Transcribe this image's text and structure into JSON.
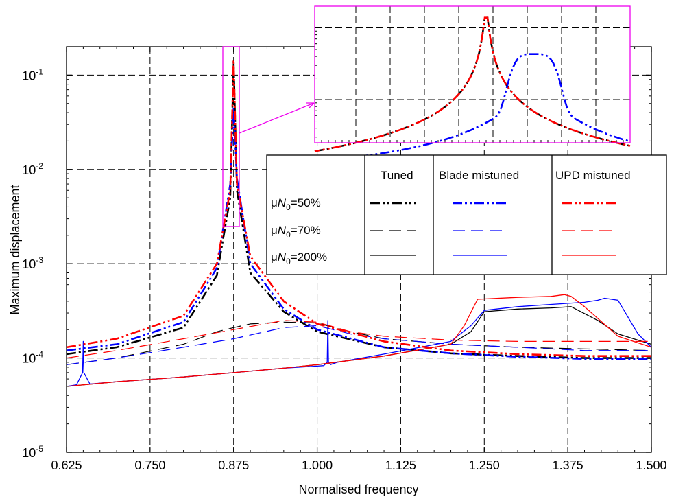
{
  "chart_data": {
    "type": "line",
    "xlabel": "Normalised frequency",
    "ylabel": "Maximum displacement",
    "xlim": [
      0.625,
      1.5
    ],
    "ylim": [
      1e-05,
      0.2
    ],
    "yscale": "log",
    "grid": true,
    "x_ticks": [
      "0.625",
      "0.750",
      "0.875",
      "1.000",
      "1.125",
      "1.250",
      "1.375",
      "1.500"
    ],
    "y_ticks": [
      {
        "base": "10",
        "exp": "-5",
        "value": 1e-05
      },
      {
        "base": "10",
        "exp": "-4",
        "value": 0.0001
      },
      {
        "base": "10",
        "exp": "-3",
        "value": 0.001
      },
      {
        "base": "10",
        "exp": "-2",
        "value": 0.01
      },
      {
        "base": "10",
        "exp": "-1",
        "value": 0.1
      }
    ],
    "legend": {
      "placement": "center-right",
      "columns": [
        "Tuned",
        "Blade mistuned",
        "UPD mistuned"
      ],
      "rows": [
        {
          "mu": "μ",
          "n": "N",
          "sub": "0",
          "value": "=50%"
        },
        {
          "mu": "μ",
          "n": "N",
          "sub": "0",
          "value": "=70%"
        },
        {
          "mu": "μ",
          "n": "N",
          "sub": "0",
          "value": "=200%"
        }
      ]
    },
    "inset": {
      "placement": "top-right",
      "xlim": [
        0.862,
        0.885
      ],
      "ylim": [
        0.0025,
        0.2
      ]
    },
    "colors": {
      "tuned": "#000000",
      "blade": "#0000ff",
      "upd": "#ff0000",
      "inset_frame": "#ee00ee"
    },
    "series": [
      {
        "group": "tuned",
        "row": 0,
        "x": [
          0.625,
          0.7,
          0.8,
          0.85,
          0.87,
          0.875,
          0.88,
          0.9,
          0.95,
          1.0,
          1.1,
          1.2,
          1.3,
          1.4,
          1.5
        ],
        "y": [
          0.00011,
          0.00013,
          0.00021,
          0.00075,
          0.005,
          0.14,
          0.006,
          0.0008,
          0.00031,
          0.00019,
          0.00013,
          0.000112,
          0.000105,
          0.0001,
          0.0001
        ]
      },
      {
        "group": "tuned",
        "row": 1,
        "x": [
          0.625,
          0.7,
          0.8,
          0.85,
          0.875,
          0.9,
          0.95,
          1.0,
          1.05,
          1.1,
          1.2,
          1.3,
          1.4,
          1.5
        ],
        "y": [
          8.5e-05,
          0.0001,
          0.00014,
          0.00019,
          0.00021,
          0.00023,
          0.00024,
          0.000235,
          0.00019,
          0.00016,
          0.00014,
          0.00013,
          0.000125,
          0.00012
        ]
      },
      {
        "group": "tuned",
        "row": 2,
        "x": [
          0.625,
          0.7,
          0.8,
          0.875,
          0.95,
          1.0,
          1.1,
          1.2,
          1.23,
          1.25,
          1.3,
          1.35,
          1.38,
          1.42,
          1.45,
          1.5
        ],
        "y": [
          5e-05,
          5.6e-05,
          6.3e-05,
          7e-05,
          7.8e-05,
          8.5e-05,
          0.000105,
          0.00014,
          0.00019,
          0.00031,
          0.00033,
          0.00034,
          0.00035,
          0.00025,
          0.00018,
          0.00014
        ]
      },
      {
        "group": "blade",
        "row": 0,
        "x": [
          0.625,
          0.7,
          0.8,
          0.85,
          0.87,
          0.875,
          0.88,
          0.9,
          0.95,
          1.0,
          1.1,
          1.2,
          1.3,
          1.4,
          1.5
        ],
        "y": [
          0.00012,
          0.00014,
          0.00024,
          0.0009,
          0.007,
          0.045,
          0.008,
          0.001,
          0.00033,
          0.0002,
          0.00013,
          0.000112,
          0.000103,
          9.8e-05,
          9.7e-05
        ]
      },
      {
        "group": "blade",
        "row": 1,
        "x": [
          0.625,
          0.7,
          0.8,
          0.875,
          0.95,
          1.0,
          1.05,
          1.1,
          1.2,
          1.3,
          1.4,
          1.5
        ],
        "y": [
          8.5e-05,
          0.0001,
          0.00013,
          0.00016,
          0.00021,
          0.00022,
          0.00018,
          0.00016,
          0.00014,
          0.00013,
          0.00012,
          0.00012
        ]
      },
      {
        "group": "blade",
        "row": 2,
        "x": [
          0.625,
          0.64,
          0.649,
          0.65,
          0.651,
          0.66,
          0.7,
          0.8,
          0.875,
          0.95,
          1.0,
          1.01,
          1.015,
          1.016,
          1.017,
          1.02,
          1.03,
          1.1,
          1.2,
          1.23,
          1.25,
          1.3,
          1.35,
          1.4,
          1.42,
          1.43,
          1.45,
          1.48,
          1.5
        ],
        "y": [
          5e-05,
          5.2e-05,
          7e-05,
          0.00015,
          7e-05,
          5.3e-05,
          5.6e-05,
          6.3e-05,
          7e-05,
          7.8e-05,
          8.2e-05,
          8.3e-05,
          9e-05,
          0.00025,
          9e-05,
          8.5e-05,
          9e-05,
          0.00011,
          0.00015,
          0.00022,
          0.00032,
          0.00035,
          0.00037,
          0.00039,
          0.00041,
          0.00043,
          0.00041,
          0.00018,
          0.00013
        ]
      },
      {
        "group": "upd",
        "row": 0,
        "x": [
          0.625,
          0.7,
          0.8,
          0.85,
          0.87,
          0.875,
          0.88,
          0.9,
          0.95,
          1.0,
          1.1,
          1.2,
          1.3,
          1.4,
          1.5
        ],
        "y": [
          0.00013,
          0.00016,
          0.00028,
          0.001,
          0.006,
          0.145,
          0.007,
          0.0012,
          0.0004,
          0.00023,
          0.00015,
          0.00012,
          0.00011,
          0.000105,
          0.000105
        ]
      },
      {
        "group": "upd",
        "row": 1,
        "x": [
          0.625,
          0.7,
          0.8,
          0.875,
          0.95,
          1.0,
          1.05,
          1.1,
          1.2,
          1.3,
          1.4,
          1.5
        ],
        "y": [
          0.0001,
          0.00012,
          0.00016,
          0.0002,
          0.00025,
          0.00024,
          0.00019,
          0.00017,
          0.000155,
          0.00015,
          0.00015,
          0.00015
        ]
      },
      {
        "group": "upd",
        "row": 2,
        "x": [
          0.625,
          0.7,
          0.8,
          0.875,
          0.95,
          1.0,
          1.1,
          1.2,
          1.22,
          1.24,
          1.3,
          1.35,
          1.37,
          1.38,
          1.4,
          1.45,
          1.5
        ],
        "y": [
          5e-05,
          5.6e-05,
          6.3e-05,
          7e-05,
          7.8e-05,
          8.5e-05,
          0.000105,
          0.00014,
          0.00022,
          0.00042,
          0.00044,
          0.00045,
          0.00047,
          0.00045,
          0.00035,
          0.00017,
          0.00013
        ]
      }
    ]
  }
}
